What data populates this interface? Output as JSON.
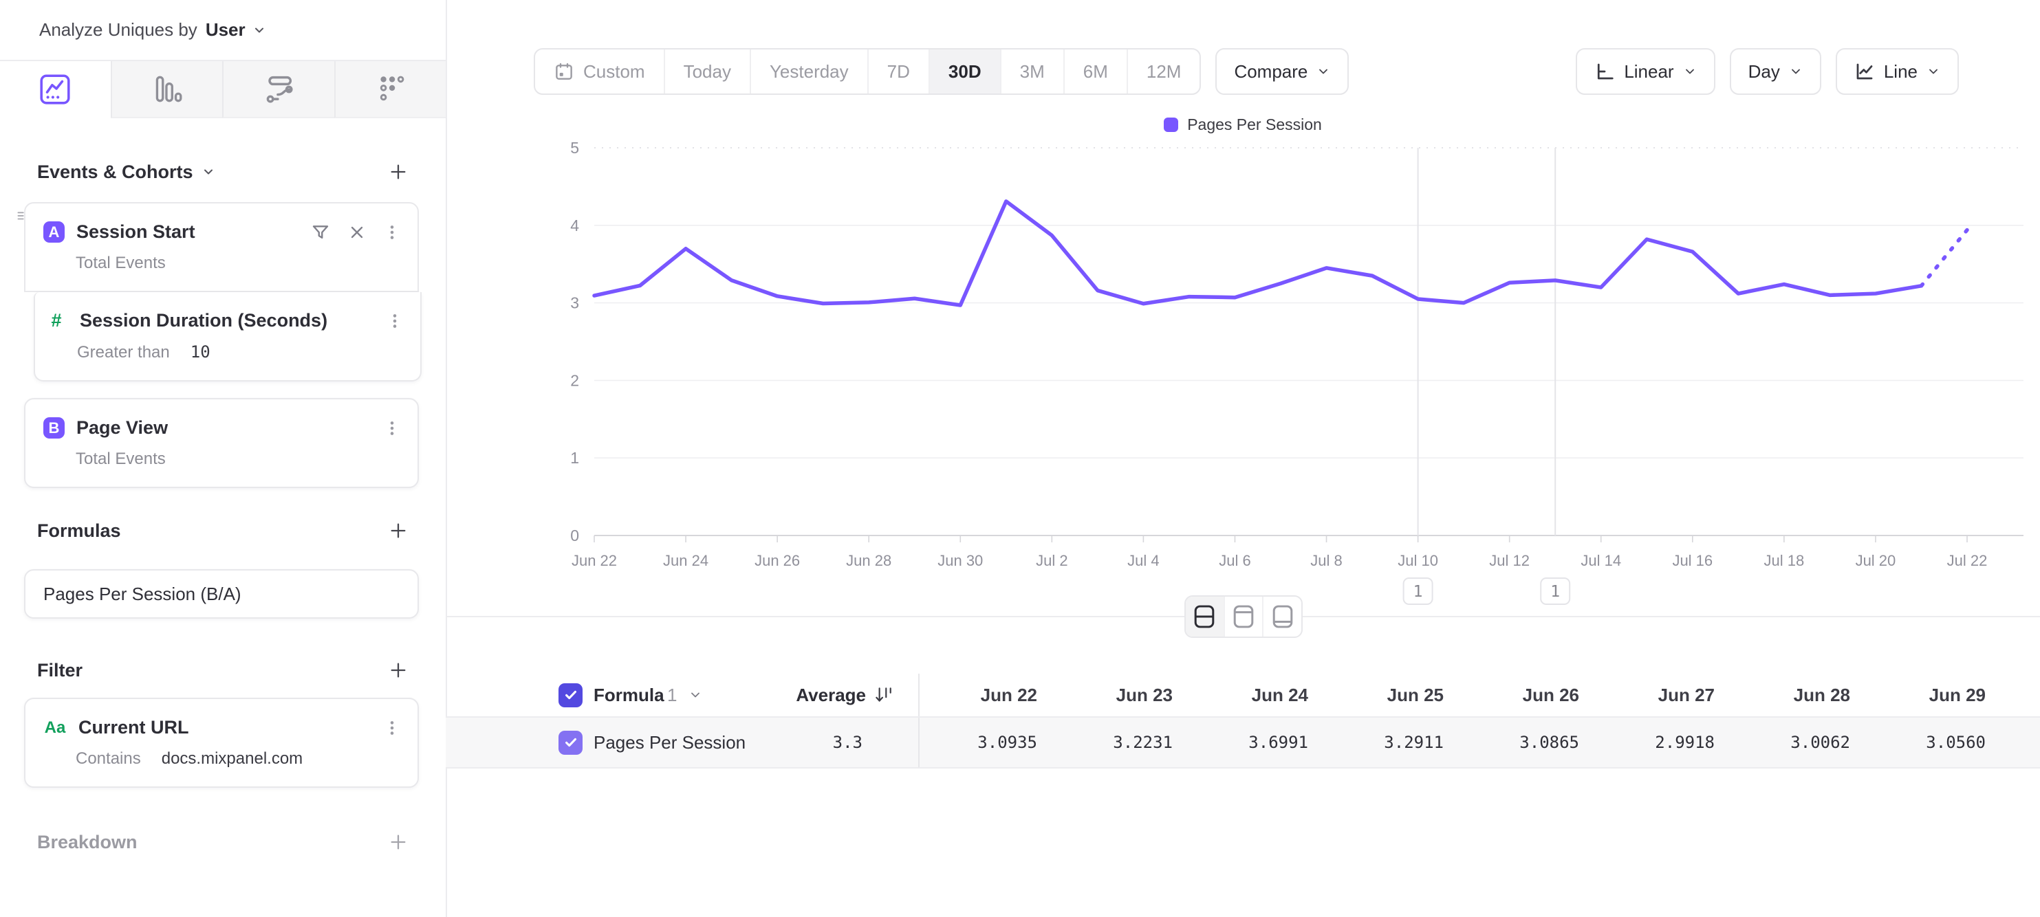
{
  "sidebar": {
    "analyze_label": "Analyze Uniques by",
    "analyze_value": "User",
    "sections": {
      "events": "Events & Cohorts",
      "formulas": "Formulas",
      "filter": "Filter",
      "breakdown": "Breakdown"
    },
    "events": [
      {
        "letter": "A",
        "name": "Session Start",
        "subtitle": "Total Events"
      },
      {
        "name": "Session Duration (Seconds)",
        "operator": "Greater than",
        "value": "10"
      },
      {
        "letter": "B",
        "name": "Page View",
        "subtitle": "Total Events"
      }
    ],
    "formula": {
      "name": "Pages Per Session (B/A)"
    },
    "filter_item": {
      "icon": "Aa",
      "name": "Current URL",
      "operator": "Contains",
      "value": "docs.mixpanel.com"
    }
  },
  "toolbar": {
    "ranges": [
      "Custom",
      "Today",
      "Yesterday",
      "7D",
      "30D",
      "3M",
      "6M",
      "12M"
    ],
    "selected_range": "30D",
    "compare_label": "Compare",
    "scale_label": "Linear",
    "interval_label": "Day",
    "chart_type_label": "Line"
  },
  "chart_data": {
    "type": "line",
    "series_name": "Pages Per Session",
    "color": "#7856FF",
    "x": [
      "Jun 22",
      "Jun 23",
      "Jun 24",
      "Jun 25",
      "Jun 26",
      "Jun 27",
      "Jun 28",
      "Jun 29",
      "Jun 30",
      "Jul 1",
      "Jul 2",
      "Jul 3",
      "Jul 4",
      "Jul 5",
      "Jul 6",
      "Jul 7",
      "Jul 8",
      "Jul 9",
      "Jul 10",
      "Jul 11",
      "Jul 12",
      "Jul 13",
      "Jul 14",
      "Jul 15",
      "Jul 16",
      "Jul 17",
      "Jul 18",
      "Jul 19",
      "Jul 20",
      "Jul 21",
      "Jul 22"
    ],
    "values": [
      3.0935,
      3.2231,
      3.6991,
      3.2911,
      3.0865,
      2.9918,
      3.0062,
      3.056,
      2.97,
      4.31,
      3.87,
      3.16,
      2.99,
      3.08,
      3.07,
      3.25,
      3.45,
      3.35,
      3.05,
      3.0,
      3.26,
      3.29,
      3.2,
      3.82,
      3.66,
      3.12,
      3.24,
      3.1,
      3.12,
      3.22,
      3.94
    ],
    "dashed_tail_points": 1,
    "x_tick_step": 2,
    "y_ticks": [
      0,
      1,
      2,
      3,
      4,
      5
    ],
    "ylim": [
      0,
      5
    ],
    "grid": "horizontal",
    "legend_position": "top-center",
    "annotations": [
      {
        "x_index": 18,
        "label": "1"
      },
      {
        "x_index": 21,
        "label": "1"
      }
    ]
  },
  "view_toggle": {
    "options": [
      "split-view",
      "chart-only",
      "table-only"
    ],
    "selected": "split-view"
  },
  "table": {
    "group_label": "Formula",
    "group_index": "1",
    "average_label": "Average",
    "columns": [
      "Jun 22",
      "Jun 23",
      "Jun 24",
      "Jun 25",
      "Jun 26",
      "Jun 27",
      "Jun 28",
      "Jun 29"
    ],
    "rows": [
      {
        "name": "Pages Per Session",
        "average": "3.3",
        "values": [
          "3.0935",
          "3.2231",
          "3.6991",
          "3.2911",
          "3.0865",
          "2.9918",
          "3.0062",
          "3.0560"
        ]
      }
    ]
  }
}
